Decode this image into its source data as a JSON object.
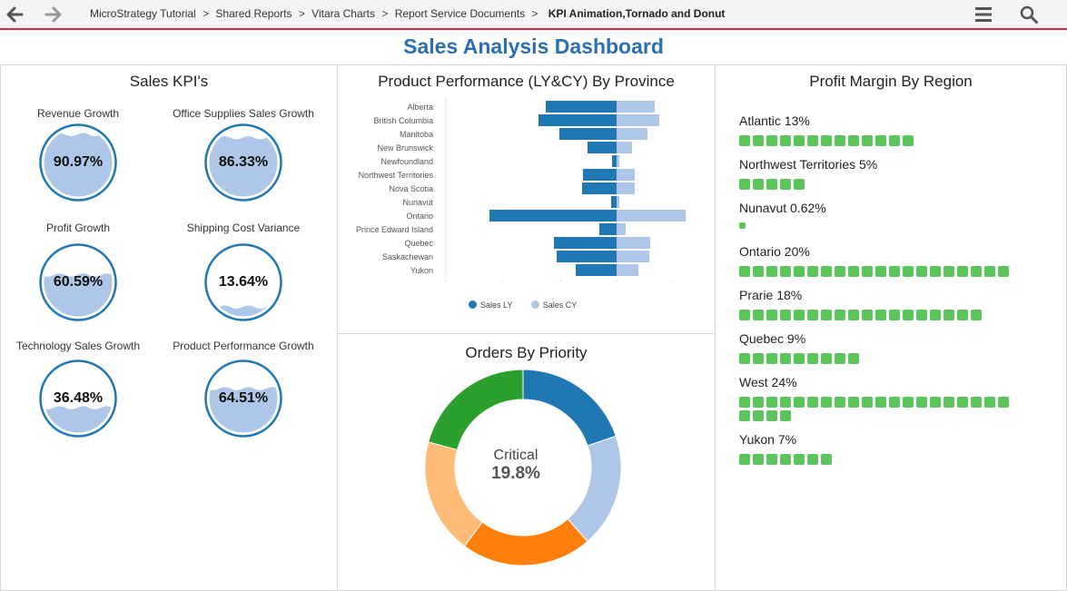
{
  "breadcrumb": {
    "items": [
      "MicroStrategy Tutorial",
      "Shared Reports",
      "Vitara Charts",
      "Report Service Documents"
    ],
    "current": "KPI Animation,Tornado and Donut",
    "separator": ">"
  },
  "dashboard": {
    "title": "Sales Analysis Dashboard"
  },
  "kpi_panel": {
    "title": "Sales KPI's",
    "items": [
      {
        "label": "Revenue Growth",
        "value": "90.97%",
        "fill": 0.9097
      },
      {
        "label": "Office Supplies Sales Growth",
        "value": "86.33%",
        "fill": 0.8633
      },
      {
        "label": "Profit Growth",
        "value": "60.59%",
        "fill": 0.6059
      },
      {
        "label": "Shipping Cost Variance",
        "value": "13.64%",
        "fill": 0.1364
      },
      {
        "label": "Technology Sales Growth",
        "value": "36.48%",
        "fill": 0.3648
      },
      {
        "label": "Product Performance Growth",
        "value": "64.51%",
        "fill": 0.6451
      }
    ]
  },
  "tornado_panel": {
    "title": "Product Performance (LY&CY) By Province"
  },
  "donut_panel": {
    "title": "Orders By Priority",
    "center_category": "Critical",
    "center_value": "19.8%"
  },
  "margin_panel": {
    "title": "Profit Margin By Region",
    "regions": [
      {
        "label": "Atlantic 13%",
        "blocks": 13
      },
      {
        "label": "Northwest Territories 5%",
        "blocks": 5
      },
      {
        "label": "Nunavut 0.62%",
        "blocks": 1
      },
      {
        "label": "Ontario 20%",
        "blocks": 20
      },
      {
        "label": "Prarie 18%",
        "blocks": 18
      },
      {
        "label": "Quebec 9%",
        "blocks": 9
      },
      {
        "label": "West 24%",
        "blocks": 24
      },
      {
        "label": "Yukon 7%",
        "blocks": 7
      }
    ]
  },
  "colors": {
    "accent": "#2a6fb2",
    "gauge_fill": "#aec7e8",
    "gauge_ring": "#1f77b4",
    "sales_ly": "#1f77b4",
    "sales_cy": "#aec7e8",
    "margin_block": "#5cc45c"
  },
  "icons": {
    "back": "arrow-left",
    "forward": "arrow-right",
    "menu": "hamburger",
    "search": "magnifier"
  },
  "chart_data": [
    {
      "type": "bar",
      "orientation": "horizontal-tornado",
      "categories": [
        "Alberta",
        "British Columbia",
        "Manitoba",
        "New Brunswick",
        "Newfoundland",
        "Northwest Territories",
        "Nova Scotia",
        "Nunavut",
        "Ontario",
        "Prince Edward Island",
        "Quebec",
        "Saskachewan",
        "Yukon"
      ],
      "series": [
        {
          "name": "Sales LY",
          "values": [
            78,
            86,
            63,
            32,
            5,
            37,
            38,
            6,
            140,
            19,
            69,
            66,
            45
          ]
        },
        {
          "name": "Sales CY",
          "values": [
            42,
            47,
            34,
            17,
            3,
            20,
            20,
            3,
            76,
            10,
            37,
            36,
            24
          ]
        }
      ],
      "legend": "bottom"
    },
    {
      "type": "pie",
      "variant": "donut",
      "slices": [
        {
          "value": 19.8,
          "color": "#1f77b4"
        },
        {
          "value": 18.8,
          "color": "#aec7e8"
        },
        {
          "value": 21.6,
          "color": "#ff7f0e"
        },
        {
          "value": 19.0,
          "color": "#ffbb78"
        },
        {
          "value": 20.8,
          "color": "#2ca02c"
        }
      ],
      "center_label": "Critical",
      "center_value": "19.8%"
    }
  ]
}
